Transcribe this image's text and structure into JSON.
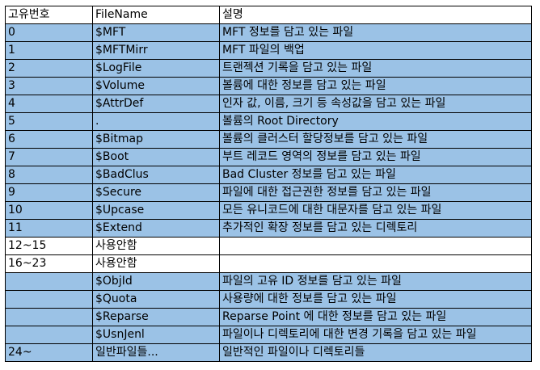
{
  "table": {
    "headers": [
      "고유번호",
      "FileName",
      "설명"
    ],
    "rows": [
      {
        "id": "0",
        "name": "$MFT",
        "desc": "MFT 정보를 담고 있는 파일"
      },
      {
        "id": "1",
        "name": "$MFTMirr",
        "desc": "MFT 파일의 백업"
      },
      {
        "id": "2",
        "name": "$LogFile",
        "desc": "트랜젝션 기록을 담고 있는 파일"
      },
      {
        "id": "3",
        "name": "$Volume",
        "desc": "볼륨에 대한 정보를 담고 있는 파일"
      },
      {
        "id": "4",
        "name": "$AttrDef",
        "desc": "인자 값, 이름, 크기 등 속성값을 담고 있는 파일"
      },
      {
        "id": "5",
        "name": ".",
        "desc": "볼륨의 Root Directory"
      },
      {
        "id": "6",
        "name": "$Bitmap",
        "desc": "볼륨의 클러스터 할당정보를 담고 있는 파일"
      },
      {
        "id": "7",
        "name": "$Boot",
        "desc": "부트 레코드 영역의 정보를 담고 있는 파일"
      },
      {
        "id": "8",
        "name": "$BadClus",
        "desc": "Bad Cluster 정보를 담고 있는 파일"
      },
      {
        "id": "9",
        "name": "$Secure",
        "desc": "파일에 대한 접근권한 정보를 담고 있는 파일"
      },
      {
        "id": "10",
        "name": "$Upcase",
        "desc": "모든 유니코드에 대한 대문자를 담고 있는 파일"
      },
      {
        "id": "11",
        "name": "$Extend",
        "desc": "추가적인 확장 정보를 담고 있는 디렉토리"
      },
      {
        "id": "12~15",
        "name": "사용안함",
        "desc": ""
      },
      {
        "id": "16~23",
        "name": "사용안함",
        "desc": ""
      },
      {
        "id": "",
        "name": "$ObjId",
        "desc": "파일의 고유 ID 정보를 담고 있는 파일"
      },
      {
        "id": "",
        "name": "$Quota",
        "desc": "사용량에 대한 정보를 담고 있는 파일"
      },
      {
        "id": "",
        "name": "$Reparse",
        "desc": "Reparse Point 에 대한 정보를 담고 있는 파일"
      },
      {
        "id": "",
        "name": "$UsnJenl",
        "desc": "파일이나 디렉토리에 대한 변경 기록을 담고 있는 파일"
      },
      {
        "id": "24~",
        "name": "일반파일들...",
        "desc": "일반적인 파일이나 디렉토리들"
      }
    ]
  },
  "colors": {
    "highlight_row": "#9bc2e6",
    "plain_row": "#ffffff",
    "border": "#000000"
  }
}
